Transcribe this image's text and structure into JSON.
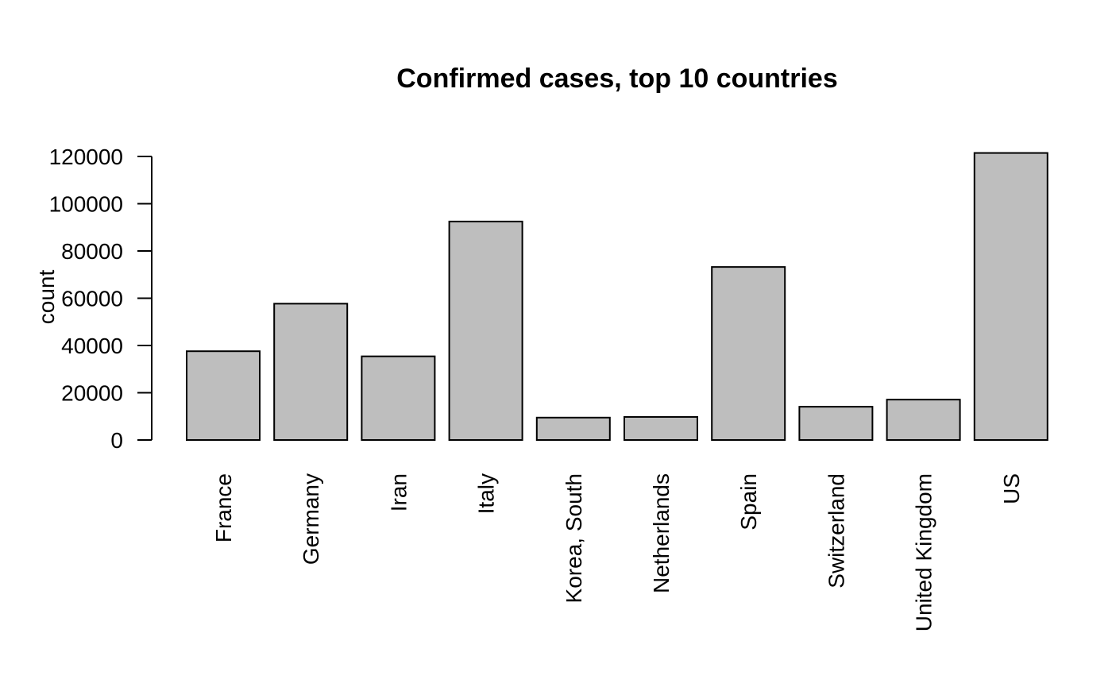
{
  "chart_data": {
    "type": "bar",
    "title": "Confirmed cases, top 10 countries",
    "xlabel": "",
    "ylabel": "count",
    "categories": [
      "France",
      "Germany",
      "Iran",
      "Italy",
      "Korea, South",
      "Netherlands",
      "Spain",
      "Switzerland",
      "United Kingdom",
      "US"
    ],
    "values": [
      37575,
      57695,
      35408,
      92472,
      9478,
      9762,
      73235,
      14076,
      17089,
      121478
    ],
    "ylim": [
      0,
      120000
    ],
    "yticks": [
      "0",
      "20000",
      "40000",
      "60000",
      "80000",
      "100000",
      "120000"
    ],
    "grid": false,
    "bar_color": "#bebebe",
    "edge_color": "#000000"
  }
}
